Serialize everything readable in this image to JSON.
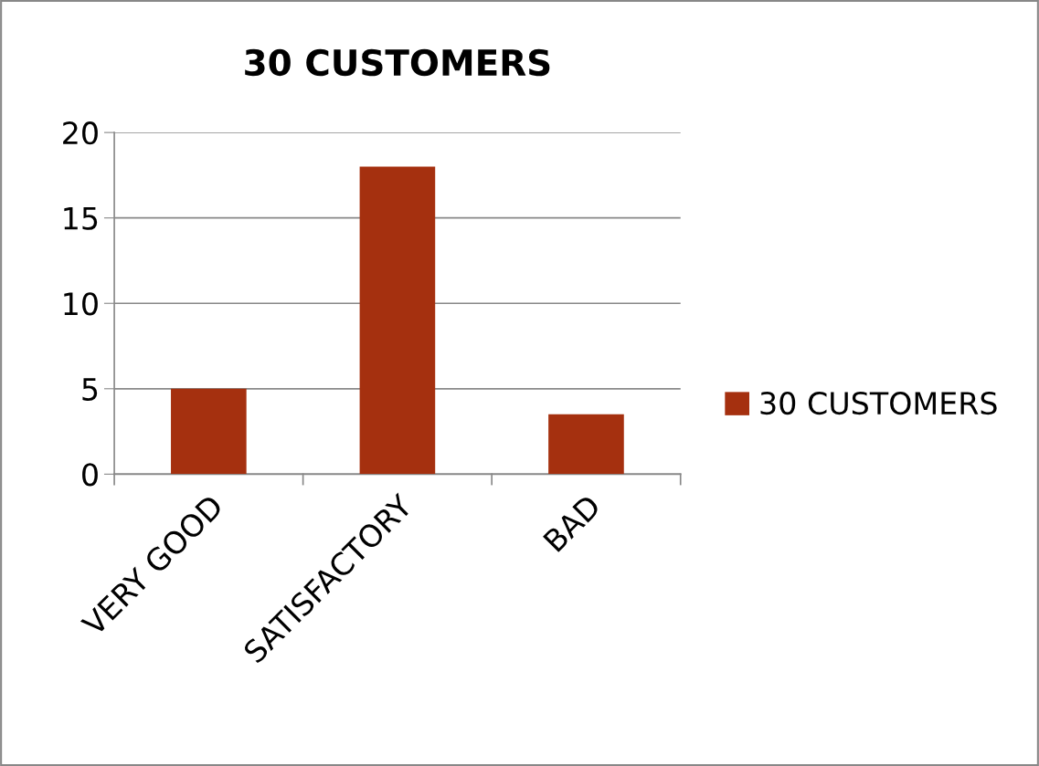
{
  "chart_data": {
    "type": "bar",
    "title": "30 CUSTOMERS",
    "categories": [
      "VERY GOOD",
      "SATISFACTORY",
      "BAD"
    ],
    "series": [
      {
        "name": "30 CUSTOMERS",
        "color": "#a5300f",
        "values": [
          5,
          18,
          3.5
        ]
      }
    ],
    "ylim": [
      0,
      20
    ],
    "yticks": [
      0,
      5,
      10,
      15,
      20
    ],
    "grid": "y",
    "legend": "right"
  }
}
